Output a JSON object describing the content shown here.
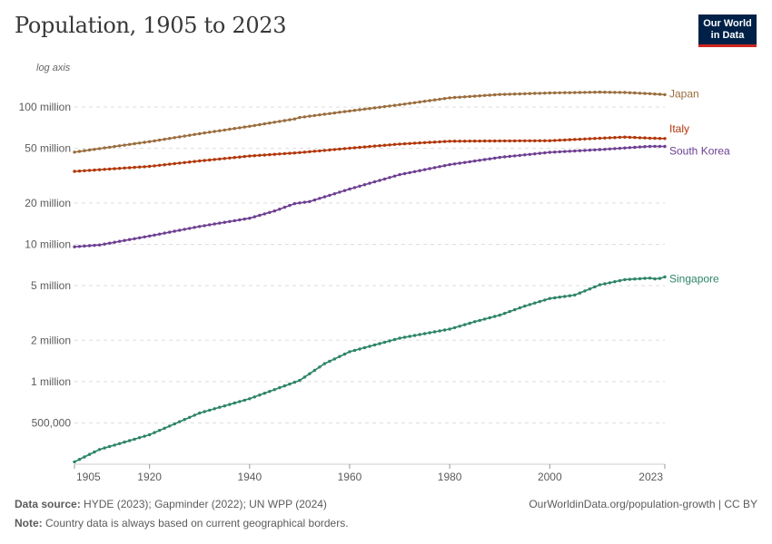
{
  "header": {
    "title": "Population, 1905 to 2023",
    "logo_line1": "Our World",
    "logo_line2": "in Data"
  },
  "footer": {
    "source_label": "Data source:",
    "source_text": "HYDE (2023); Gapminder (2022); UN WPP (2024)",
    "note_label": "Note:",
    "note_text": "Country data is always based on current geographical borders.",
    "url_text": "OurWorldinData.org/population-growth | CC BY"
  },
  "chart_data": {
    "type": "line",
    "title": "Population, 1905 to 2023",
    "axis_note": "log axis",
    "y_scale": "log",
    "xlim": [
      1905,
      2023
    ],
    "ylim": [
      250000,
      140000000
    ],
    "x_ticks": [
      1905,
      1920,
      1940,
      1960,
      1980,
      2000,
      2023
    ],
    "y_ticks": [
      {
        "value": 100000000,
        "label": "100 million"
      },
      {
        "value": 50000000,
        "label": "50 million"
      },
      {
        "value": 20000000,
        "label": "20 million"
      },
      {
        "value": 10000000,
        "label": "10 million"
      },
      {
        "value": 5000000,
        "label": "5 million"
      },
      {
        "value": 2000000,
        "label": "2 million"
      },
      {
        "value": 1000000,
        "label": "1 million"
      },
      {
        "value": 500000,
        "label": "500,000"
      }
    ],
    "grid": "horizontal dashed",
    "series": [
      {
        "name": "Japan",
        "color": "#9a6c3c",
        "points": [
          [
            1905,
            47000000
          ],
          [
            1920,
            56000000
          ],
          [
            1930,
            64000000
          ],
          [
            1940,
            72500000
          ],
          [
            1949,
            82000000
          ],
          [
            1950,
            84000000
          ],
          [
            1960,
            93700000
          ],
          [
            1970,
            104000000
          ],
          [
            1980,
            116800000
          ],
          [
            1990,
            123500000
          ],
          [
            2000,
            126800000
          ],
          [
            2010,
            128500000
          ],
          [
            2015,
            127800000
          ],
          [
            2020,
            125200000
          ],
          [
            2023,
            123300000
          ]
        ]
      },
      {
        "name": "Italy",
        "color": "#b13507",
        "points": [
          [
            1905,
            34000000
          ],
          [
            1920,
            37000000
          ],
          [
            1930,
            40500000
          ],
          [
            1940,
            44000000
          ],
          [
            1950,
            46600000
          ],
          [
            1960,
            50200000
          ],
          [
            1970,
            53800000
          ],
          [
            1980,
            56400000
          ],
          [
            1990,
            56700000
          ],
          [
            2000,
            56900000
          ],
          [
            2010,
            59300000
          ],
          [
            2015,
            60500000
          ],
          [
            2020,
            59400000
          ],
          [
            2023,
            59000000
          ]
        ]
      },
      {
        "name": "South Korea",
        "color": "#6d3e91",
        "points": [
          [
            1905,
            9600000
          ],
          [
            1910,
            9900000
          ],
          [
            1920,
            11500000
          ],
          [
            1930,
            13500000
          ],
          [
            1940,
            15500000
          ],
          [
            1945,
            17500000
          ],
          [
            1949,
            19800000
          ],
          [
            1952,
            20500000
          ],
          [
            1960,
            25300000
          ],
          [
            1970,
            32200000
          ],
          [
            1980,
            38100000
          ],
          [
            1990,
            43000000
          ],
          [
            2000,
            46800000
          ],
          [
            2010,
            49000000
          ],
          [
            2020,
            51800000
          ],
          [
            2023,
            51700000
          ]
        ]
      },
      {
        "name": "Singapore",
        "color": "#2c8465",
        "points": [
          [
            1905,
            260000
          ],
          [
            1910,
            320000
          ],
          [
            1920,
            410000
          ],
          [
            1930,
            590000
          ],
          [
            1940,
            750000
          ],
          [
            1950,
            1020000
          ],
          [
            1955,
            1350000
          ],
          [
            1960,
            1650000
          ],
          [
            1970,
            2070000
          ],
          [
            1980,
            2410000
          ],
          [
            1985,
            2730000
          ],
          [
            1990,
            3050000
          ],
          [
            1995,
            3550000
          ],
          [
            2000,
            4030000
          ],
          [
            2005,
            4270000
          ],
          [
            2010,
            5070000
          ],
          [
            2015,
            5530000
          ],
          [
            2020,
            5680000
          ],
          [
            2021,
            5600000
          ],
          [
            2022,
            5640000
          ],
          [
            2023,
            5790000
          ]
        ]
      }
    ]
  }
}
